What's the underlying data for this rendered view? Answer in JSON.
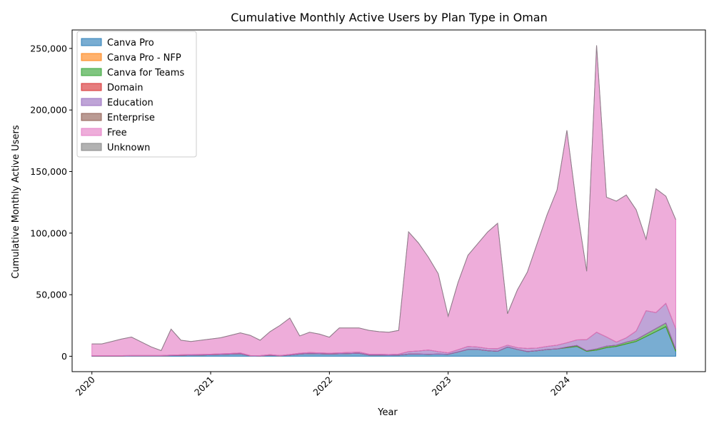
{
  "chart_data": {
    "type": "area",
    "stacked": true,
    "title": "Cumulative Monthly Active Users by Plan Type in Oman",
    "xlabel": "Year",
    "ylabel": "Cumulative Monthly Active Users",
    "ylim": [
      -12500,
      265000
    ],
    "yticks": [
      0,
      50000,
      100000,
      150000,
      200000,
      250000
    ],
    "ytick_labels": [
      "0",
      "50,000",
      "100,000",
      "150,000",
      "200,000",
      "250,000"
    ],
    "xticks": [
      "2020-01",
      "2021-01",
      "2022-01",
      "2023-01",
      "2024-01"
    ],
    "xtick_labels": [
      "2020",
      "2021",
      "2022",
      "2023",
      "2024"
    ],
    "xlim": [
      "2019-11",
      "2025-03"
    ],
    "legend_position": "upper-left",
    "grid": false,
    "x": [
      "2020-01",
      "2020-02",
      "2020-03",
      "2020-04",
      "2020-05",
      "2020-06",
      "2020-07",
      "2020-08",
      "2020-09",
      "2020-10",
      "2020-11",
      "2020-12",
      "2021-01",
      "2021-02",
      "2021-03",
      "2021-04",
      "2021-05",
      "2021-06",
      "2021-07",
      "2021-08",
      "2021-09",
      "2021-10",
      "2021-11",
      "2021-12",
      "2022-01",
      "2022-02",
      "2022-03",
      "2022-04",
      "2022-05",
      "2022-06",
      "2022-07",
      "2022-08",
      "2022-09",
      "2022-10",
      "2022-11",
      "2022-12",
      "2023-01",
      "2023-02",
      "2023-03",
      "2023-04",
      "2023-05",
      "2023-06",
      "2023-07",
      "2023-08",
      "2023-09",
      "2023-10",
      "2023-11",
      "2023-12",
      "2024-01",
      "2024-02",
      "2024-03",
      "2024-04",
      "2024-05",
      "2024-06",
      "2024-07",
      "2024-08",
      "2024-09",
      "2024-10",
      "2024-11",
      "2024-12"
    ],
    "series": [
      {
        "name": "Canva Pro",
        "color": "#1f77b4",
        "values": [
          200,
          200,
          200,
          200,
          300,
          300,
          300,
          300,
          500,
          700,
          900,
          1000,
          1200,
          1400,
          1700,
          2000,
          300,
          200,
          800,
          300,
          1000,
          1800,
          2200,
          2000,
          1800,
          2000,
          2200,
          2400,
          1000,
          1000,
          800,
          1000,
          1800,
          1800,
          1600,
          1800,
          1600,
          3500,
          5500,
          5500,
          4500,
          4000,
          7500,
          5500,
          3800,
          4500,
          5500,
          6000,
          7000,
          8000,
          4000,
          5000,
          7000,
          8000,
          10000,
          12000,
          16000,
          20000,
          24000,
          4000
        ]
      },
      {
        "name": "Canva Pro - NFP",
        "color": "#ff7f0e",
        "values": [
          0,
          0,
          0,
          0,
          0,
          0,
          0,
          0,
          0,
          0,
          0,
          0,
          0,
          0,
          0,
          0,
          0,
          0,
          0,
          0,
          0,
          0,
          0,
          0,
          0,
          0,
          0,
          0,
          0,
          0,
          0,
          0,
          0,
          0,
          0,
          0,
          0,
          0,
          0,
          0,
          0,
          0,
          0,
          0,
          0,
          0,
          0,
          0,
          0,
          0,
          0,
          0,
          0,
          0,
          0,
          0,
          0,
          0,
          0,
          0
        ]
      },
      {
        "name": "Canva for Teams",
        "color": "#2ca02c",
        "values": [
          0,
          0,
          0,
          0,
          0,
          0,
          0,
          0,
          0,
          0,
          0,
          0,
          0,
          0,
          0,
          0,
          0,
          0,
          0,
          0,
          0,
          0,
          0,
          0,
          0,
          0,
          0,
          0,
          0,
          0,
          0,
          0,
          0,
          0,
          0,
          0,
          0,
          0,
          0,
          0,
          0,
          0,
          0,
          0,
          0,
          0,
          0,
          0,
          500,
          800,
          500,
          1000,
          1200,
          1000,
          1500,
          1500,
          2000,
          2500,
          3000,
          1500
        ]
      },
      {
        "name": "Domain",
        "color": "#d62728",
        "values": [
          0,
          0,
          0,
          0,
          0,
          0,
          0,
          0,
          0,
          0,
          0,
          0,
          0,
          0,
          0,
          0,
          0,
          0,
          0,
          0,
          0,
          0,
          0,
          0,
          0,
          0,
          0,
          0,
          0,
          0,
          0,
          0,
          0,
          0,
          0,
          0,
          0,
          0,
          0,
          0,
          0,
          0,
          0,
          0,
          0,
          0,
          0,
          0,
          0,
          0,
          0,
          0,
          0,
          0,
          0,
          0,
          0,
          0,
          0,
          0
        ]
      },
      {
        "name": "Education",
        "color": "#9467bd",
        "values": [
          300,
          300,
          300,
          300,
          300,
          300,
          300,
          300,
          500,
          500,
          500,
          500,
          500,
          600,
          600,
          700,
          300,
          300,
          500,
          300,
          500,
          700,
          800,
          800,
          700,
          800,
          900,
          1000,
          700,
          700,
          600,
          800,
          2000,
          2500,
          3500,
          2000,
          1200,
          1800,
          2500,
          2000,
          1800,
          2200,
          1500,
          1500,
          2500,
          2200,
          2500,
          3000,
          3500,
          4500,
          9000,
          13500,
          7500,
          2500,
          3500,
          7000,
          19000,
          13000,
          16000,
          17000
        ]
      },
      {
        "name": "Enterprise",
        "color": "#8c564b",
        "values": [
          0,
          0,
          0,
          0,
          0,
          0,
          0,
          0,
          0,
          0,
          0,
          0,
          0,
          0,
          0,
          0,
          0,
          0,
          0,
          0,
          0,
          0,
          0,
          0,
          0,
          0,
          0,
          0,
          0,
          0,
          0,
          0,
          0,
          0,
          0,
          0,
          0,
          0,
          0,
          0,
          0,
          0,
          0,
          0,
          0,
          0,
          0,
          0,
          0,
          0,
          0,
          0,
          0,
          0,
          0,
          0,
          0,
          0,
          0,
          0
        ]
      },
      {
        "name": "Free",
        "color": "#e377c2",
        "values": [
          9500,
          9500,
          11500,
          13500,
          15000,
          11000,
          7000,
          4000,
          21000,
          11800,
          10600,
          11500,
          12300,
          13000,
          14700,
          16300,
          16400,
          12500,
          18700,
          24400,
          29500,
          14000,
          16500,
          15200,
          13000,
          20200,
          19900,
          19600,
          19300,
          18300,
          18100,
          19200,
          97200,
          87700,
          75400,
          63200,
          29700,
          54700,
          74000,
          84000,
          94700,
          101800,
          25500,
          47000,
          62000,
          85000,
          107000,
          126000,
          172500,
          107700,
          55500,
          233000,
          113500,
          114500,
          116000,
          98500,
          58000,
          100500,
          87000,
          88500
        ]
      },
      {
        "name": "Unknown",
        "color": "#7f7f7f",
        "values": [
          0,
          0,
          0,
          0,
          0,
          0,
          0,
          0,
          0,
          0,
          0,
          0,
          0,
          0,
          0,
          0,
          0,
          0,
          0,
          0,
          0,
          0,
          0,
          0,
          0,
          0,
          0,
          0,
          0,
          0,
          0,
          0,
          0,
          0,
          0,
          0,
          0,
          0,
          0,
          0,
          0,
          0,
          0,
          0,
          0,
          0,
          0,
          0,
          0,
          0,
          0,
          0,
          0,
          0,
          0,
          0,
          0,
          0,
          0,
          0
        ]
      }
    ]
  }
}
